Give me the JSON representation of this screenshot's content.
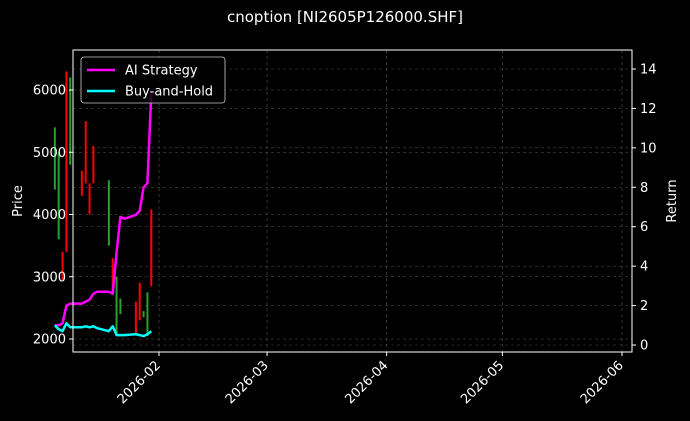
{
  "chart_data": {
    "type": "line",
    "title": "cnoption [NI2605P126000.SHF]",
    "xlabel": "",
    "ylabel": "Price",
    "ylabel_right": "Return",
    "grid": true,
    "legend_position": "upper left",
    "ylim": [
      1800,
      6650
    ],
    "ylim_right": [
      -0.3,
      14.8
    ],
    "y_ticks": [
      2000,
      3000,
      4000,
      5000,
      6000
    ],
    "y_ticks_right": [
      0,
      2,
      4,
      6,
      8,
      10,
      12,
      14
    ],
    "x_ticks": [
      "2026-02",
      "2026-03",
      "2026-04",
      "2026-05",
      "2026-06"
    ],
    "legend": [
      "AI Strategy",
      "Buy-and-Hold"
    ],
    "series": [
      {
        "name": "AI Strategy",
        "color": "#ff00ff",
        "axis": "right",
        "x": [
          "2026-01-05",
          "2026-01-06",
          "2026-01-07",
          "2026-01-08",
          "2026-01-09",
          "2026-01-12",
          "2026-01-13",
          "2026-01-14",
          "2026-01-15",
          "2026-01-16",
          "2026-01-19",
          "2026-01-20",
          "2026-01-21",
          "2026-01-22",
          "2026-01-23",
          "2026-01-26",
          "2026-01-27",
          "2026-01-28",
          "2026-01-29",
          "2026-01-30"
        ],
        "values": [
          1.0,
          1.0,
          1.1,
          2.0,
          2.1,
          2.1,
          2.2,
          2.3,
          2.6,
          2.7,
          2.7,
          2.6,
          4.7,
          6.5,
          6.4,
          6.6,
          6.8,
          8.0,
          8.2,
          12.8
        ]
      },
      {
        "name": "Buy-and-Hold",
        "color": "#00ffff",
        "axis": "right",
        "x": [
          "2026-01-05",
          "2026-01-06",
          "2026-01-07",
          "2026-01-08",
          "2026-01-09",
          "2026-01-12",
          "2026-01-13",
          "2026-01-14",
          "2026-01-15",
          "2026-01-16",
          "2026-01-19",
          "2026-01-20",
          "2026-01-21",
          "2026-01-22",
          "2026-01-23",
          "2026-01-26",
          "2026-01-27",
          "2026-01-28",
          "2026-01-29",
          "2026-01-30"
        ],
        "values": [
          1.0,
          0.8,
          0.7,
          1.1,
          0.9,
          0.9,
          0.95,
          0.9,
          0.95,
          0.85,
          0.7,
          0.95,
          0.5,
          0.5,
          0.5,
          0.55,
          0.5,
          0.45,
          0.55,
          0.7
        ]
      }
    ],
    "candles": {
      "axis": "left",
      "up_color": "#2ca02c",
      "down_color": "#ff0000",
      "items": [
        {
          "x": "2026-01-05",
          "low": 4400,
          "high": 5400,
          "dir": "up"
        },
        {
          "x": "2026-01-06",
          "low": 3600,
          "high": 5000,
          "dir": "up"
        },
        {
          "x": "2026-01-07",
          "low": 2950,
          "high": 3400,
          "dir": "down"
        },
        {
          "x": "2026-01-08",
          "low": 3400,
          "high": 6300,
          "dir": "down"
        },
        {
          "x": "2026-01-09",
          "low": 4800,
          "high": 6200,
          "dir": "up"
        },
        {
          "x": "2026-01-12",
          "low": 4300,
          "high": 4700,
          "dir": "down"
        },
        {
          "x": "2026-01-13",
          "low": 4500,
          "high": 5500,
          "dir": "down"
        },
        {
          "x": "2026-01-14",
          "low": 4000,
          "high": 4500,
          "dir": "down"
        },
        {
          "x": "2026-01-15",
          "low": 4500,
          "high": 5100,
          "dir": "down"
        },
        {
          "x": "2026-01-19",
          "low": 3500,
          "high": 4550,
          "dir": "up"
        },
        {
          "x": "2026-01-20",
          "low": 2750,
          "high": 3300,
          "dir": "down"
        },
        {
          "x": "2026-01-21",
          "low": 2050,
          "high": 3000,
          "dir": "up"
        },
        {
          "x": "2026-01-22",
          "low": 2400,
          "high": 2650,
          "dir": "up"
        },
        {
          "x": "2026-01-26",
          "low": 2100,
          "high": 2600,
          "dir": "down"
        },
        {
          "x": "2026-01-27",
          "low": 2300,
          "high": 2900,
          "dir": "down"
        },
        {
          "x": "2026-01-28",
          "low": 2350,
          "high": 2450,
          "dir": "up"
        },
        {
          "x": "2026-01-29",
          "low": 2050,
          "high": 2750,
          "dir": "up"
        },
        {
          "x": "2026-01-30",
          "low": 2850,
          "high": 4080,
          "dir": "down"
        }
      ]
    }
  }
}
